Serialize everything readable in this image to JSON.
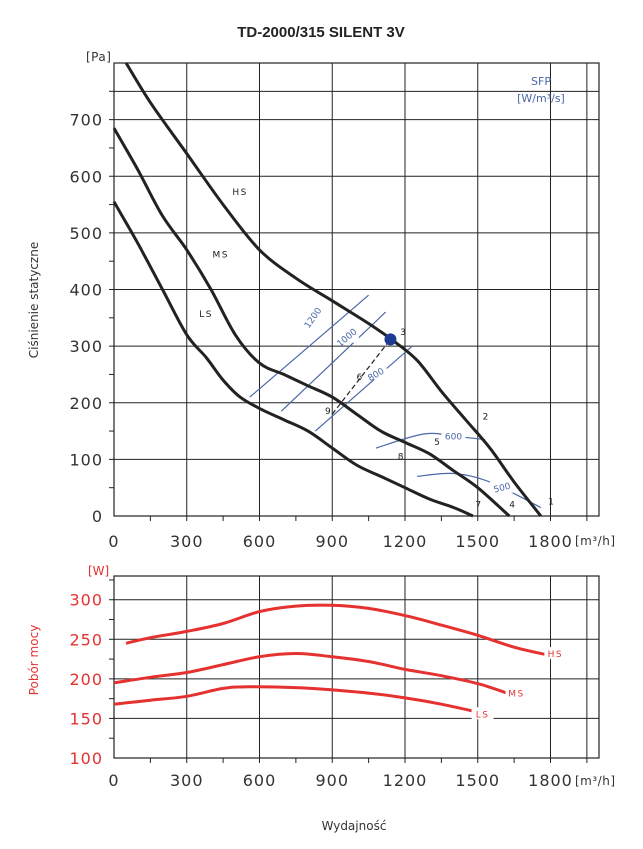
{
  "title": "TD-2000/315 SILENT 3V",
  "xlabel": "Wydajność",
  "colors": {
    "pressure": "#222222",
    "power": "#e5312f",
    "sfp": "#4a67a8"
  },
  "chart_data": [
    {
      "type": "line",
      "name": "pressure",
      "ylabel": "Ciśnienie statyczne",
      "y_unit": "[Pa]",
      "x_unit": "[m³/h]",
      "xlim": [
        0,
        2000
      ],
      "ylim": [
        0,
        800
      ],
      "x_ticks": [
        0,
        300,
        600,
        900,
        1200,
        1500,
        1800
      ],
      "x_tick_labels": [
        "0",
        "300",
        "600",
        "900",
        "1200",
        "1500",
        "1800"
      ],
      "y_ticks": [
        0,
        100,
        200,
        300,
        400,
        500,
        600,
        700
      ],
      "y_tick_labels": [
        "0",
        "100",
        "200",
        "300",
        "400",
        "500",
        "600",
        "700"
      ],
      "series": [
        {
          "name": "HS",
          "points": [
            [
              50,
              800
            ],
            [
              150,
              730
            ],
            [
              300,
              640
            ],
            [
              450,
              550
            ],
            [
              600,
              470
            ],
            [
              750,
              420
            ],
            [
              900,
              380
            ],
            [
              1050,
              340
            ],
            [
              1150,
              310
            ],
            [
              1250,
              275
            ],
            [
              1350,
              220
            ],
            [
              1450,
              170
            ],
            [
              1550,
              120
            ],
            [
              1650,
              60
            ],
            [
              1760,
              0
            ]
          ]
        },
        {
          "name": "MS",
          "points": [
            [
              0,
              685
            ],
            [
              100,
              610
            ],
            [
              200,
              530
            ],
            [
              300,
              470
            ],
            [
              400,
              400
            ],
            [
              500,
              320
            ],
            [
              600,
              270
            ],
            [
              700,
              250
            ],
            [
              800,
              230
            ],
            [
              900,
              210
            ],
            [
              1000,
              180
            ],
            [
              1100,
              150
            ],
            [
              1200,
              130
            ],
            [
              1300,
              110
            ],
            [
              1400,
              80
            ],
            [
              1500,
              50
            ],
            [
              1630,
              0
            ]
          ]
        },
        {
          "name": "LS",
          "points": [
            [
              0,
              555
            ],
            [
              100,
              480
            ],
            [
              200,
              400
            ],
            [
              300,
              320
            ],
            [
              380,
              280
            ],
            [
              450,
              240
            ],
            [
              520,
              210
            ],
            [
              600,
              190
            ],
            [
              700,
              170
            ],
            [
              800,
              150
            ],
            [
              900,
              120
            ],
            [
              1000,
              90
            ],
            [
              1100,
              70
            ],
            [
              1200,
              50
            ],
            [
              1300,
              30
            ],
            [
              1400,
              15
            ],
            [
              1480,
              0
            ]
          ]
        }
      ],
      "series_labels": [
        {
          "text": "HS",
          "x": 520,
          "y": 570
        },
        {
          "text": "MS",
          "x": 440,
          "y": 460
        },
        {
          "text": "LS",
          "x": 380,
          "y": 355
        }
      ],
      "sfp_title": [
        "SFP",
        "[W/m³/s]"
      ],
      "sfp_lines": [
        {
          "label": "1200",
          "points": [
            [
              560,
              210
            ],
            [
              1050,
              390
            ]
          ],
          "label_at": [
            820,
            350
          ],
          "angle": -55
        },
        {
          "label": "1000",
          "points": [
            [
              690,
              185
            ],
            [
              1120,
              360
            ]
          ],
          "label_at": [
            960,
            315
          ],
          "angle": -40
        },
        {
          "label": "800",
          "points": [
            [
              830,
              150
            ],
            [
              1230,
              300
            ]
          ],
          "label_at": [
            1080,
            250
          ],
          "angle": -30
        },
        {
          "label": "600",
          "points": [
            [
              1080,
              120
            ],
            [
              1280,
              145
            ],
            [
              1420,
              140
            ],
            [
              1530,
              135
            ]
          ],
          "label_at": [
            1400,
            140
          ],
          "angle": 0
        },
        {
          "label": "500",
          "points": [
            [
              1250,
              70
            ],
            [
              1400,
              75
            ],
            [
              1550,
              60
            ],
            [
              1760,
              15
            ]
          ],
          "label_at": [
            1600,
            50
          ],
          "angle": -15
        }
      ],
      "operating_point": {
        "x": 1140,
        "y": 312
      },
      "system_line": {
        "points": [
          [
            900,
            180
          ],
          [
            1140,
            312
          ]
        ]
      },
      "point_labels": [
        {
          "text": "1",
          "x": 1790,
          "y": 20
        },
        {
          "text": "2",
          "x": 1520,
          "y": 170
        },
        {
          "text": "3",
          "x": 1180,
          "y": 320
        },
        {
          "text": "4",
          "x": 1630,
          "y": 15
        },
        {
          "text": "5",
          "x": 1320,
          "y": 125
        },
        {
          "text": "6",
          "x": 1000,
          "y": 240
        },
        {
          "text": "7",
          "x": 1490,
          "y": 15
        },
        {
          "text": "8",
          "x": 1170,
          "y": 100
        },
        {
          "text": "9",
          "x": 870,
          "y": 180
        }
      ]
    },
    {
      "type": "line",
      "name": "power",
      "ylabel": "Pobór mocy",
      "y_unit": "[W]",
      "x_unit": "[m³/h]",
      "xlim": [
        0,
        2000
      ],
      "ylim": [
        100,
        330
      ],
      "x_ticks": [
        0,
        300,
        600,
        900,
        1200,
        1500,
        1800
      ],
      "x_tick_labels": [
        "0",
        "300",
        "600",
        "900",
        "1200",
        "1500",
        "1800"
      ],
      "y_ticks": [
        100,
        150,
        200,
        250,
        300
      ],
      "y_tick_labels": [
        "100",
        "150",
        "200",
        "250",
        "300"
      ],
      "series": [
        {
          "name": "HS",
          "points": [
            [
              50,
              245
            ],
            [
              150,
              252
            ],
            [
              300,
              260
            ],
            [
              450,
              270
            ],
            [
              600,
              285
            ],
            [
              750,
              292
            ],
            [
              900,
              293
            ],
            [
              1050,
              289
            ],
            [
              1200,
              280
            ],
            [
              1350,
              268
            ],
            [
              1500,
              255
            ],
            [
              1650,
              240
            ],
            [
              1790,
              230
            ]
          ]
        },
        {
          "name": "MS",
          "points": [
            [
              0,
              195
            ],
            [
              150,
              202
            ],
            [
              300,
              208
            ],
            [
              450,
              218
            ],
            [
              600,
              228
            ],
            [
              750,
              232
            ],
            [
              900,
              228
            ],
            [
              1050,
              222
            ],
            [
              1200,
              212
            ],
            [
              1350,
              204
            ],
            [
              1500,
              194
            ],
            [
              1620,
              182
            ]
          ]
        },
        {
          "name": "LS",
          "points": [
            [
              0,
              168
            ],
            [
              150,
              173
            ],
            [
              300,
              178
            ],
            [
              450,
              188
            ],
            [
              550,
              190
            ],
            [
              750,
              189
            ],
            [
              900,
              186
            ],
            [
              1050,
              182
            ],
            [
              1200,
              176
            ],
            [
              1350,
              168
            ],
            [
              1500,
              158
            ]
          ]
        }
      ],
      "series_labels": [
        {
          "text": "HS",
          "x": 1820,
          "y": 230
        },
        {
          "text": "MS",
          "x": 1660,
          "y": 180
        },
        {
          "text": "LS",
          "x": 1520,
          "y": 154
        }
      ]
    }
  ]
}
